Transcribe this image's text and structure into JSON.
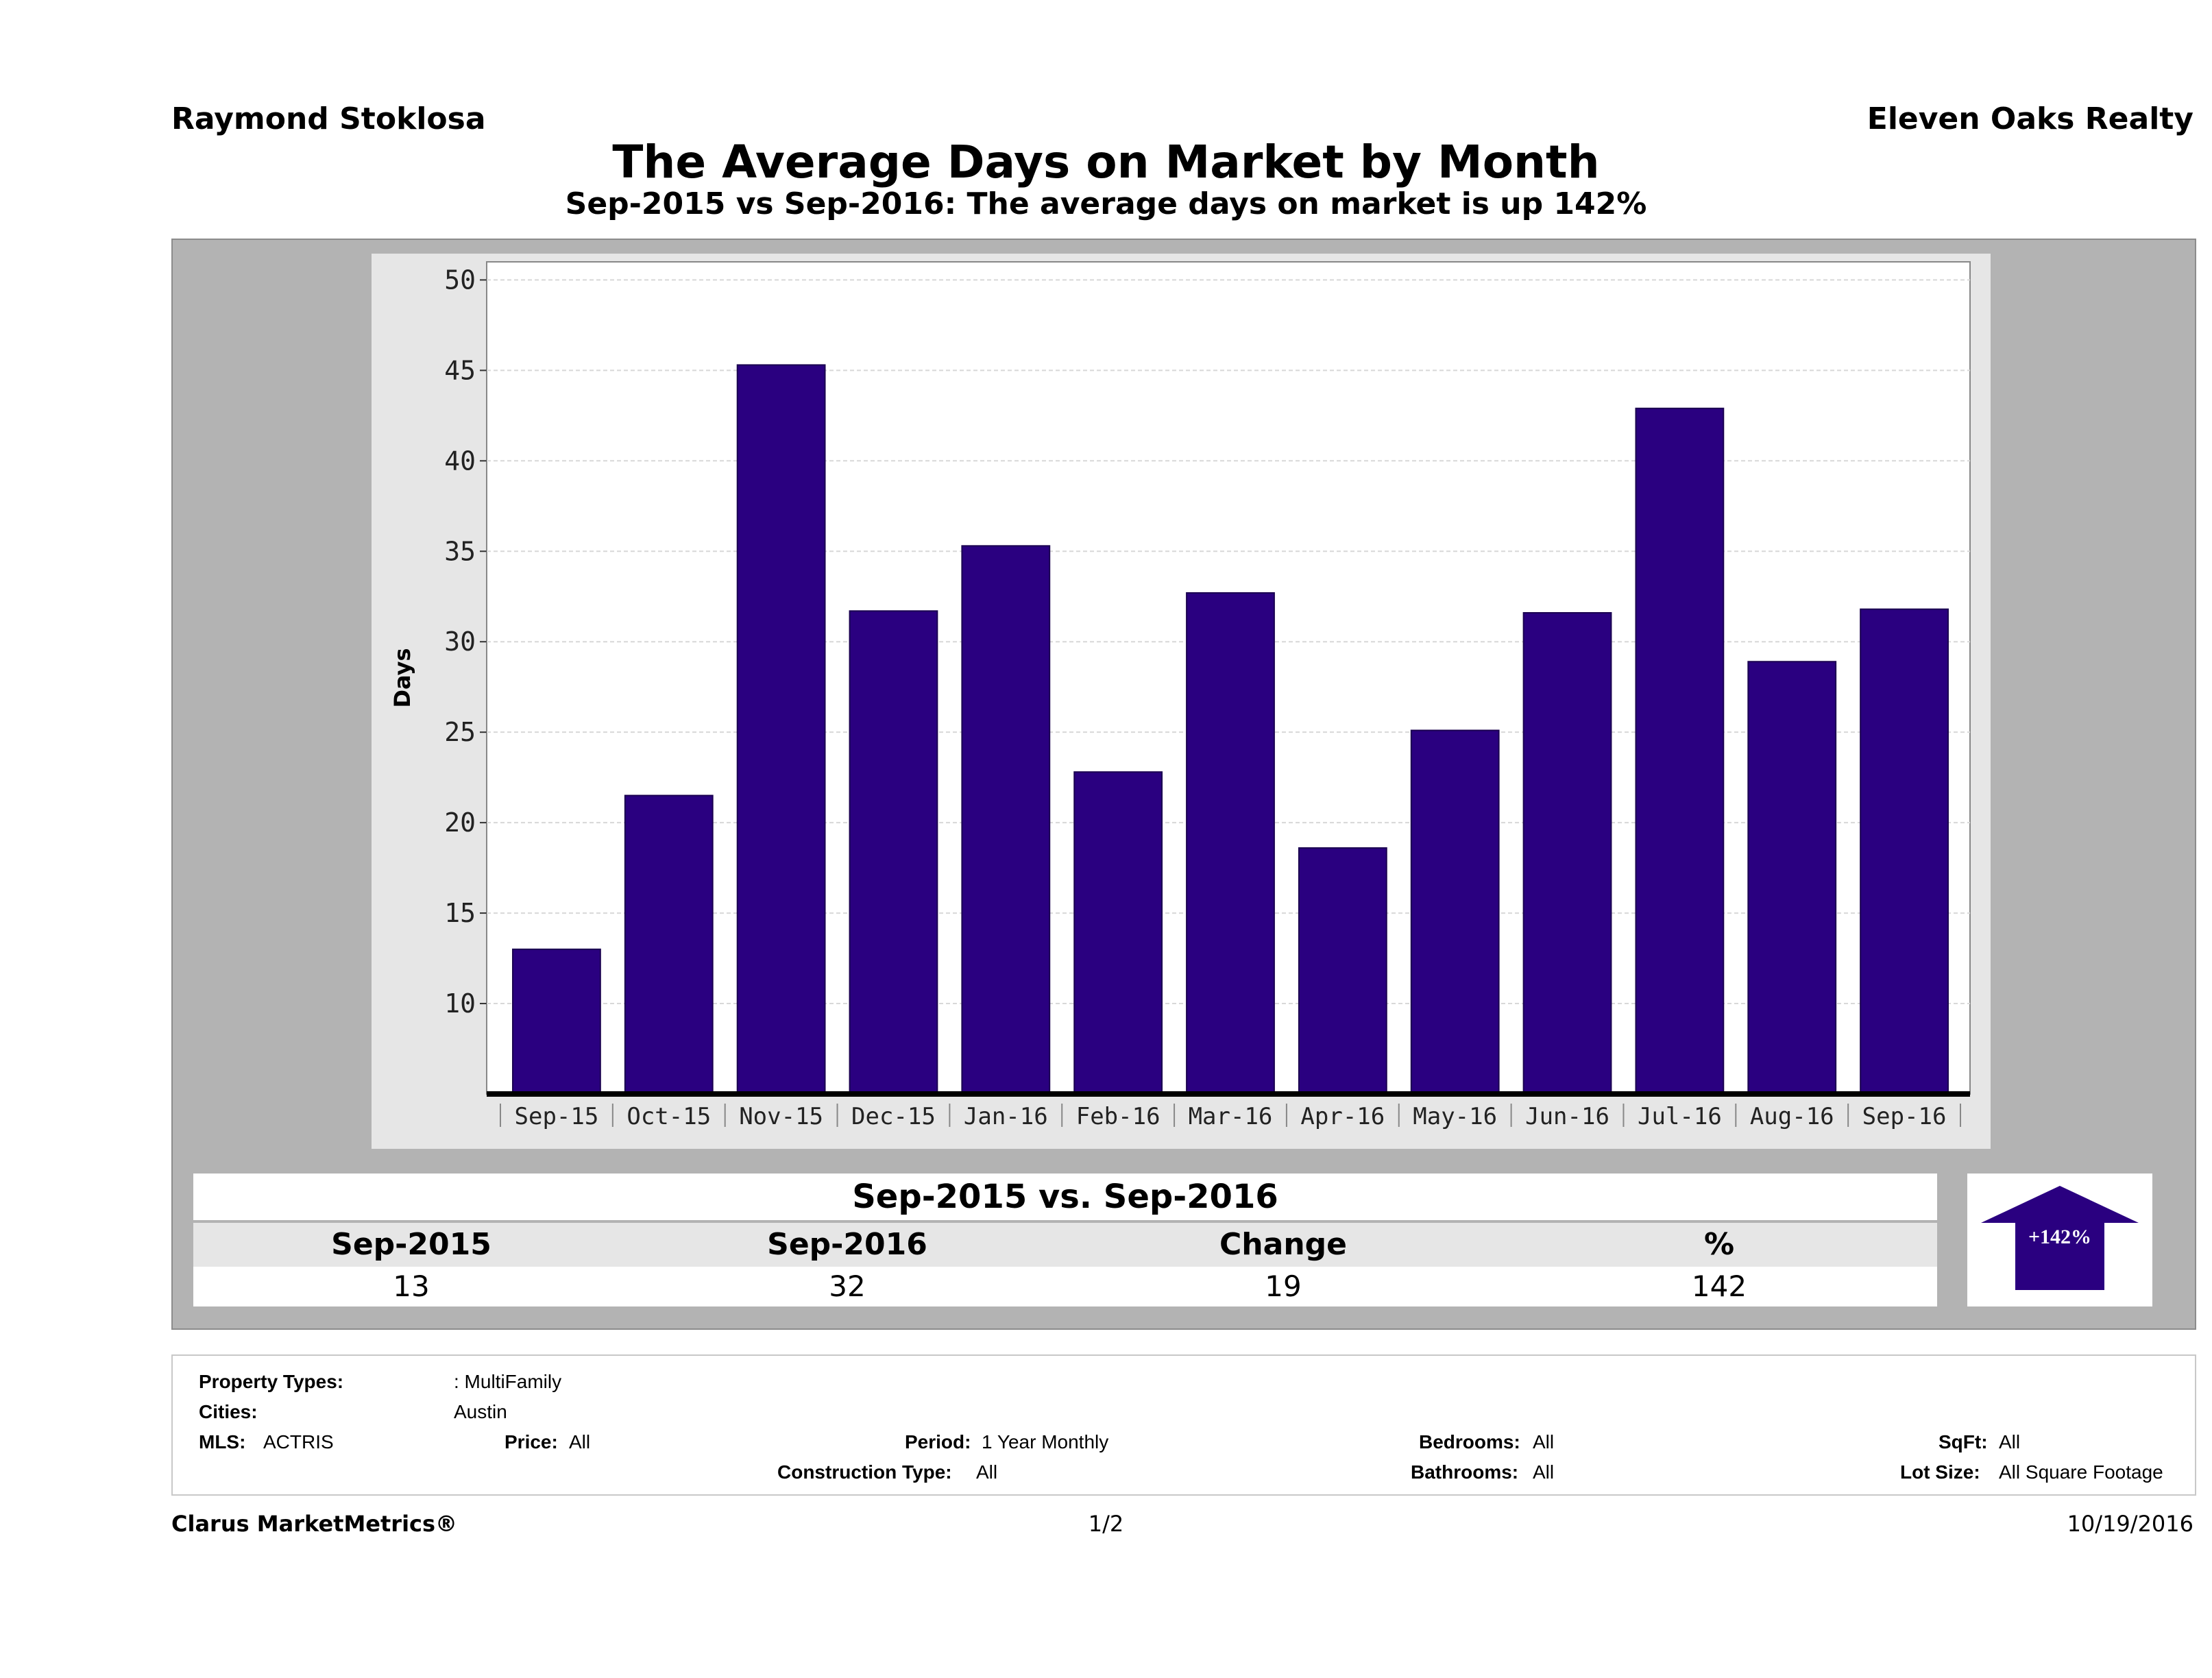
{
  "header": {
    "agent": "Raymond Stoklosa",
    "brokerage": "Eleven Oaks Realty",
    "title": "The Average Days on Market by Month",
    "subtitle": "Sep-2015 vs Sep-2016: The average days on market is up 142%"
  },
  "chart_data": {
    "type": "bar",
    "categories": [
      "Sep-15",
      "Oct-15",
      "Nov-15",
      "Dec-15",
      "Jan-16",
      "Feb-16",
      "Mar-16",
      "Apr-16",
      "May-16",
      "Jun-16",
      "Jul-16",
      "Aug-16",
      "Sep-16"
    ],
    "values": [
      13,
      21.5,
      45.3,
      31.7,
      35.3,
      22.8,
      32.7,
      18.6,
      25.1,
      31.6,
      42.9,
      28.9,
      31.8
    ],
    "ylabel": "Days",
    "xlabel": "",
    "ylim": [
      5,
      51
    ],
    "yticks": [
      10,
      15,
      20,
      25,
      30,
      35,
      40,
      45,
      50
    ],
    "grid": true,
    "bar_color": "#2a0080"
  },
  "comparison": {
    "header": "Sep-2015 vs. Sep-2016",
    "labels": [
      "Sep-2015",
      "Sep-2016",
      "Change",
      "%"
    ],
    "values": [
      "13",
      "32",
      "19",
      "142"
    ],
    "badge": "+142%",
    "arrow_color": "#2a0080"
  },
  "filters": {
    "property_types_label": "Property Types:",
    "property_types_value": ": MultiFamily",
    "cities_label": "Cities:",
    "cities_value": "Austin",
    "mls_label": "MLS:",
    "mls_value": "ACTRIS",
    "price_label": "Price:",
    "price_value": "All",
    "period_label": "Period:",
    "period_value": "1 Year Monthly",
    "construction_label": "Construction Type:",
    "construction_value": "All",
    "bedrooms_label": "Bedrooms:",
    "bedrooms_value": "All",
    "bathrooms_label": "Bathrooms:",
    "bathrooms_value": "All",
    "sqft_label": "SqFt:",
    "sqft_value": "All",
    "lotsize_label": "Lot Size:",
    "lotsize_value": "All Square Footage"
  },
  "footer": {
    "left": "Clarus MarketMetrics®",
    "page": "1/2",
    "date": "10/19/2016"
  }
}
